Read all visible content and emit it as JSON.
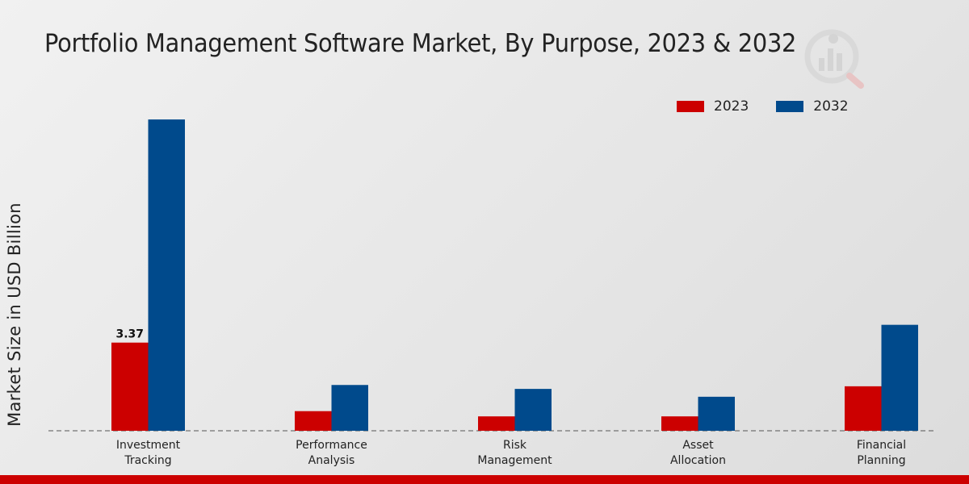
{
  "chart_data": {
    "type": "bar",
    "title": "Portfolio Management Software Market, By Purpose, 2023 & 2032",
    "xlabel": "",
    "ylabel": "Market Size in USD Billion",
    "categories": [
      "Investment\nTracking",
      "Performance\nAnalysis",
      "Risk\nManagement",
      "Asset\nAllocation",
      "Financial\nPlanning"
    ],
    "series": [
      {
        "name": "2023",
        "color": "#cc0000",
        "values": [
          3.37,
          0.75,
          0.55,
          0.55,
          1.7
        ]
      },
      {
        "name": "2032",
        "color": "#004a8c",
        "values": [
          11.9,
          1.75,
          1.6,
          1.3,
          4.05
        ]
      }
    ],
    "data_labels": [
      {
        "series": 0,
        "index": 0,
        "text": "3.37"
      }
    ],
    "ylim": [
      0,
      14
    ],
    "grid": false,
    "legend": "top-right"
  }
}
